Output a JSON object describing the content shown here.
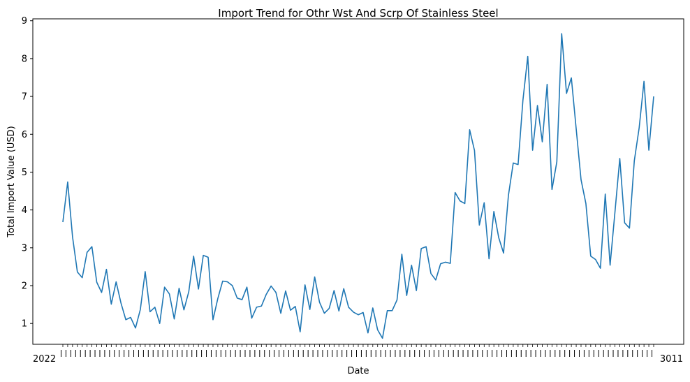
{
  "chart_data": {
    "type": "line",
    "title": "Import Trend for Othr Wst And Scrp Of Stainless Steel",
    "xlabel": "Date",
    "ylabel": "Total Import Value (USD)",
    "ylim": [
      0.45,
      9.05
    ],
    "yticks": [
      1,
      2,
      3,
      4,
      5,
      6,
      7,
      8,
      9
    ],
    "x_tick_labels_note": "x tick labels are overlapping and illegible; only a jumble of digits is visible",
    "x_tick_start_text": "2022",
    "x_tick_end_text": "3011",
    "grid": false,
    "legend": "none",
    "series": [
      {
        "color": "#1f77b4",
        "values": [
          3.68,
          4.74,
          3.29,
          2.36,
          2.21,
          2.88,
          3.03,
          2.09,
          1.82,
          2.43,
          1.51,
          2.1,
          1.54,
          1.1,
          1.16,
          0.88,
          1.37,
          2.37,
          1.31,
          1.43,
          1.0,
          1.96,
          1.78,
          1.12,
          1.93,
          1.36,
          1.84,
          2.78,
          1.91,
          2.8,
          2.75,
          1.1,
          1.66,
          2.12,
          2.1,
          2.0,
          1.67,
          1.63,
          1.96,
          1.14,
          1.43,
          1.46,
          1.77,
          1.99,
          1.82,
          1.27,
          1.86,
          1.35,
          1.45,
          0.78,
          2.02,
          1.37,
          2.23,
          1.56,
          1.27,
          1.4,
          1.87,
          1.33,
          1.92,
          1.43,
          1.3,
          1.23,
          1.29,
          0.75,
          1.41,
          0.83,
          0.61,
          1.34,
          1.34,
          1.62,
          2.83,
          1.74,
          2.54,
          1.87,
          2.98,
          3.03,
          2.32,
          2.15,
          2.58,
          2.62,
          2.59,
          4.46,
          4.24,
          4.17,
          6.12,
          5.57,
          3.6,
          4.19,
          2.71,
          3.96,
          3.27,
          2.86,
          4.38,
          5.24,
          5.2,
          6.9,
          8.06,
          5.58,
          6.76,
          5.8,
          7.32,
          4.54,
          5.27,
          8.66,
          7.08,
          7.49,
          6.14,
          4.8,
          4.17,
          2.78,
          2.69,
          2.46,
          4.42,
          2.54,
          3.94,
          5.36,
          3.66,
          3.52,
          5.3,
          6.17,
          7.4,
          5.58,
          7.0
        ]
      }
    ]
  }
}
